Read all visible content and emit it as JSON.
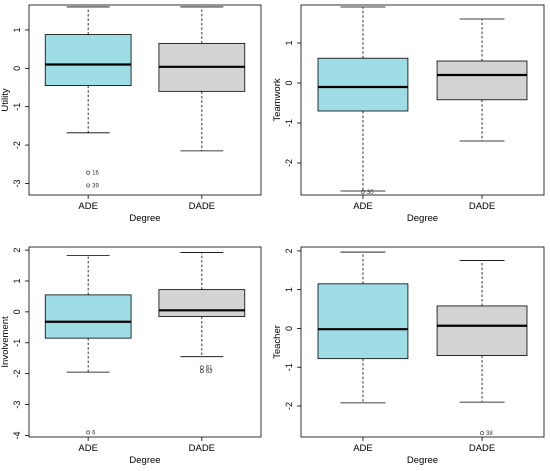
{
  "chart_data": [
    {
      "type": "boxplot",
      "xlabel": "Degree",
      "ylabel": "Utility",
      "categories": [
        "ADE",
        "DADE"
      ],
      "ylim": [
        -3.3,
        1.65
      ],
      "yticks": [
        1,
        0,
        -1,
        -2,
        -3
      ],
      "colors": [
        "#9fdde6",
        "#d3d3d3"
      ],
      "boxes": [
        {
          "category": "ADE",
          "whisker_low": -1.68,
          "q1": -0.45,
          "median": 0.1,
          "q3": 0.88,
          "whisker_high": 1.6,
          "outliers": [
            {
              "value": -2.72,
              "label": "16"
            },
            {
              "value": -3.05,
              "label": "39"
            }
          ]
        },
        {
          "category": "DADE",
          "whisker_low": -2.15,
          "q1": -0.6,
          "median": 0.04,
          "q3": 0.65,
          "whisker_high": 1.6,
          "outliers": []
        }
      ]
    },
    {
      "type": "boxplot",
      "xlabel": "Degree",
      "ylabel": "Teamwork",
      "categories": [
        "ADE",
        "DADE"
      ],
      "ylim": [
        -2.8,
        1.95
      ],
      "yticks": [
        1,
        0,
        -1,
        -2
      ],
      "colors": [
        "#9fdde6",
        "#d3d3d3"
      ],
      "boxes": [
        {
          "category": "ADE",
          "whisker_low": -2.7,
          "q1": -0.7,
          "median": -0.1,
          "q3": 0.62,
          "whisker_high": 1.9,
          "outliers": [
            {
              "value": -2.72,
              "label": "30"
            }
          ]
        },
        {
          "category": "DADE",
          "whisker_low": -1.45,
          "q1": -0.42,
          "median": 0.2,
          "q3": 0.55,
          "whisker_high": 1.6,
          "outliers": []
        }
      ]
    },
    {
      "type": "boxplot",
      "xlabel": "Degree",
      "ylabel": "Involvement",
      "categories": [
        "ADE",
        "DADE"
      ],
      "ylim": [
        -4.05,
        2.1
      ],
      "yticks": [
        2,
        1,
        0,
        -1,
        -2,
        -3,
        -4
      ],
      "colors": [
        "#9fdde6",
        "#d3d3d3"
      ],
      "boxes": [
        {
          "category": "ADE",
          "whisker_low": -1.95,
          "q1": -0.85,
          "median": -0.32,
          "q3": 0.55,
          "whisker_high": 1.82,
          "outliers": [
            {
              "value": -3.9,
              "label": "6"
            }
          ]
        },
        {
          "category": "DADE",
          "whisker_low": -1.45,
          "q1": -0.15,
          "median": 0.05,
          "q3": 0.72,
          "whisker_high": 1.92,
          "outliers": [
            {
              "value": -1.8,
              "label": "61"
            },
            {
              "value": -1.92,
              "label": "63"
            }
          ]
        }
      ]
    },
    {
      "type": "boxplot",
      "xlabel": "Degree",
      "ylabel": "Teacher",
      "categories": [
        "ADE",
        "DADE"
      ],
      "ylim": [
        -2.8,
        2.1
      ],
      "yticks": [
        2,
        1,
        0,
        -1,
        -2
      ],
      "colors": [
        "#9fdde6",
        "#d3d3d3"
      ],
      "boxes": [
        {
          "category": "ADE",
          "whisker_low": -1.92,
          "q1": -0.78,
          "median": -0.02,
          "q3": 1.15,
          "whisker_high": 1.97,
          "outliers": []
        },
        {
          "category": "DADE",
          "whisker_low": -1.9,
          "q1": -0.7,
          "median": 0.07,
          "q3": 0.58,
          "whisker_high": 1.75,
          "outliers": [
            {
              "value": -2.7,
              "label": "38"
            }
          ]
        }
      ]
    }
  ]
}
